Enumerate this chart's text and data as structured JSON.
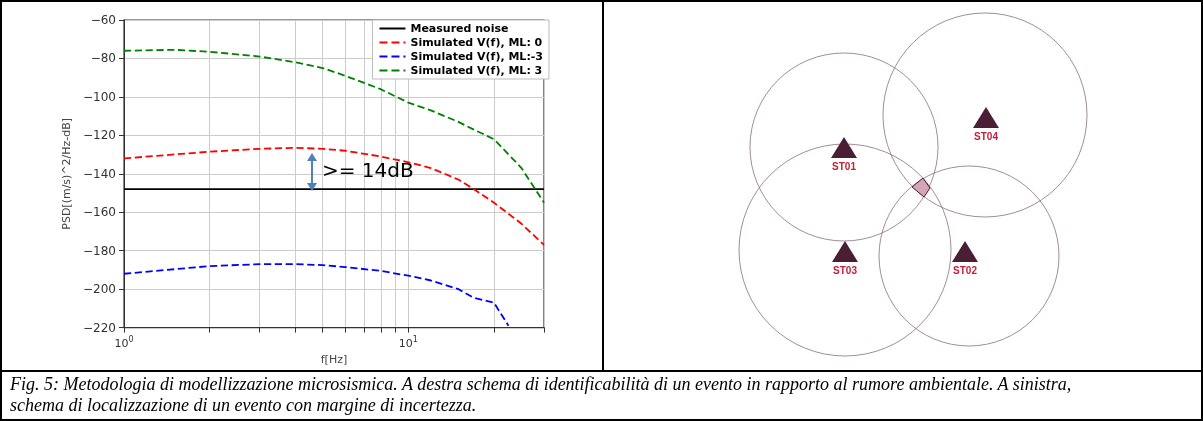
{
  "chart_data": [
    {
      "type": "line",
      "xlabel": "f[Hz]",
      "ylabel": "PSD[(m/s)^2/Hz-dB]",
      "log": "x",
      "xlim": [
        1,
        30
      ],
      "ylim": [
        -220,
        -60
      ],
      "xticks": [
        {
          "value": 1,
          "label": "10$^{0}$"
        },
        {
          "value": 2,
          "label": null
        },
        {
          "value": 3,
          "label": null
        },
        {
          "value": 4,
          "label": null
        },
        {
          "value": 5,
          "label": null
        },
        {
          "value": 6,
          "label": null
        },
        {
          "value": 7,
          "label": null
        },
        {
          "value": 8,
          "label": null
        },
        {
          "value": 9,
          "label": null
        },
        {
          "value": 10,
          "label": "10$^{1}$"
        },
        {
          "value": 20,
          "label": null
        },
        {
          "value": 30,
          "label": null
        }
      ],
      "yticks": [
        -60,
        -80,
        -100,
        -120,
        -140,
        -160,
        -180,
        -200,
        -220
      ],
      "grid": true,
      "legend": "top right",
      "marker": "none",
      "series": [
        {
          "name": "Measured noise",
          "color": "#000000",
          "line_style": "solid",
          "x": [
            1,
            30
          ],
          "values": [
            -148,
            -148
          ]
        },
        {
          "name": "Simulated V(f), ML: 0",
          "color": "#ff0000",
          "line_style": "dashed",
          "x": [
            1,
            2,
            3,
            4,
            5,
            6,
            8,
            10,
            12,
            15,
            17,
            20,
            25,
            30
          ],
          "values": [
            -132,
            -128.5,
            -127,
            -126.5,
            -127,
            -128,
            -131,
            -134,
            -137,
            -143,
            -148,
            -155,
            -166,
            -177
          ]
        },
        {
          "name": "Simulated V(f), ML:-3",
          "color": "#0000ff",
          "line_style": "dashed",
          "x": [
            1,
            2,
            3,
            4,
            5,
            6,
            8,
            10,
            12,
            15,
            17,
            20,
            22.5
          ],
          "values": [
            -192,
            -188,
            -187,
            -187,
            -187.5,
            -188.5,
            -190.5,
            -193,
            -195.5,
            -200,
            -204.5,
            -207,
            -219
          ]
        },
        {
          "name": "Simulated V(f), ML: 3",
          "color": "#008000",
          "line_style": "dashed",
          "x": [
            1,
            1.5,
            2,
            3,
            4,
            5,
            6,
            8,
            10,
            12,
            15,
            17,
            20,
            25,
            30
          ],
          "values": [
            -76,
            -75.5,
            -76.5,
            -79,
            -82,
            -85,
            -89,
            -96,
            -103,
            -107,
            -113,
            -117,
            -122,
            -137,
            -155
          ]
        }
      ],
      "annotations": [
        ">= 14dB",
        "Fig. 5: Metodologia di modellizzazione microsismica. A destra schema di identificabilità di un evento in rapporto al rumore ambientale. A sinistra, schema di localizzazione di un evento con margine di incertezza."
      ]
    },
    {
      "type": "other",
      "annotations": [
        "ST01",
        "ST02",
        "ST03",
        "ST04"
      ]
    }
  ]
}
